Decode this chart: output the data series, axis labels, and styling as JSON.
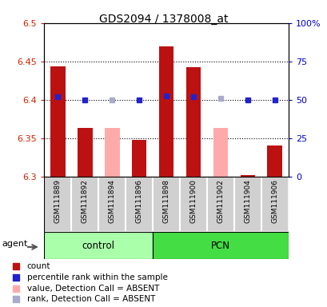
{
  "title": "GDS2094 / 1378008_at",
  "samples": [
    "GSM111889",
    "GSM111892",
    "GSM111894",
    "GSM111896",
    "GSM111898",
    "GSM111900",
    "GSM111902",
    "GSM111904",
    "GSM111906"
  ],
  "red_values": [
    6.444,
    6.363,
    null,
    6.348,
    6.47,
    6.443,
    null,
    6.302,
    6.34
  ],
  "pink_values": [
    null,
    null,
    6.363,
    null,
    null,
    null,
    6.363,
    null,
    null
  ],
  "blue_values": [
    52.0,
    50.0,
    null,
    50.0,
    52.5,
    52.0,
    null,
    50.0,
    50.0
  ],
  "lavender_values": [
    null,
    null,
    50.0,
    null,
    null,
    null,
    51.0,
    null,
    null
  ],
  "ylim_left": [
    6.3,
    6.5
  ],
  "ylim_right": [
    0,
    100
  ],
  "yticks_left": [
    6.3,
    6.35,
    6.4,
    6.45,
    6.5
  ],
  "yticks_right": [
    0,
    25,
    50,
    75,
    100
  ],
  "ytick_labels_left": [
    "6.3",
    "6.35",
    "6.4",
    "6.45",
    "6.5"
  ],
  "ytick_labels_right": [
    "0",
    "25",
    "50",
    "75",
    "100%"
  ],
  "hlines": [
    6.35,
    6.4,
    6.45
  ],
  "bar_width": 0.55,
  "col_red": "#bb1111",
  "col_pink": "#ffaaaa",
  "col_blue": "#2222cc",
  "col_lavender": "#aaaacc",
  "control_color": "#aaffaa",
  "pcn_color": "#44dd44",
  "background_color": "#ffffff",
  "n_control": 4,
  "n_pcn": 5
}
